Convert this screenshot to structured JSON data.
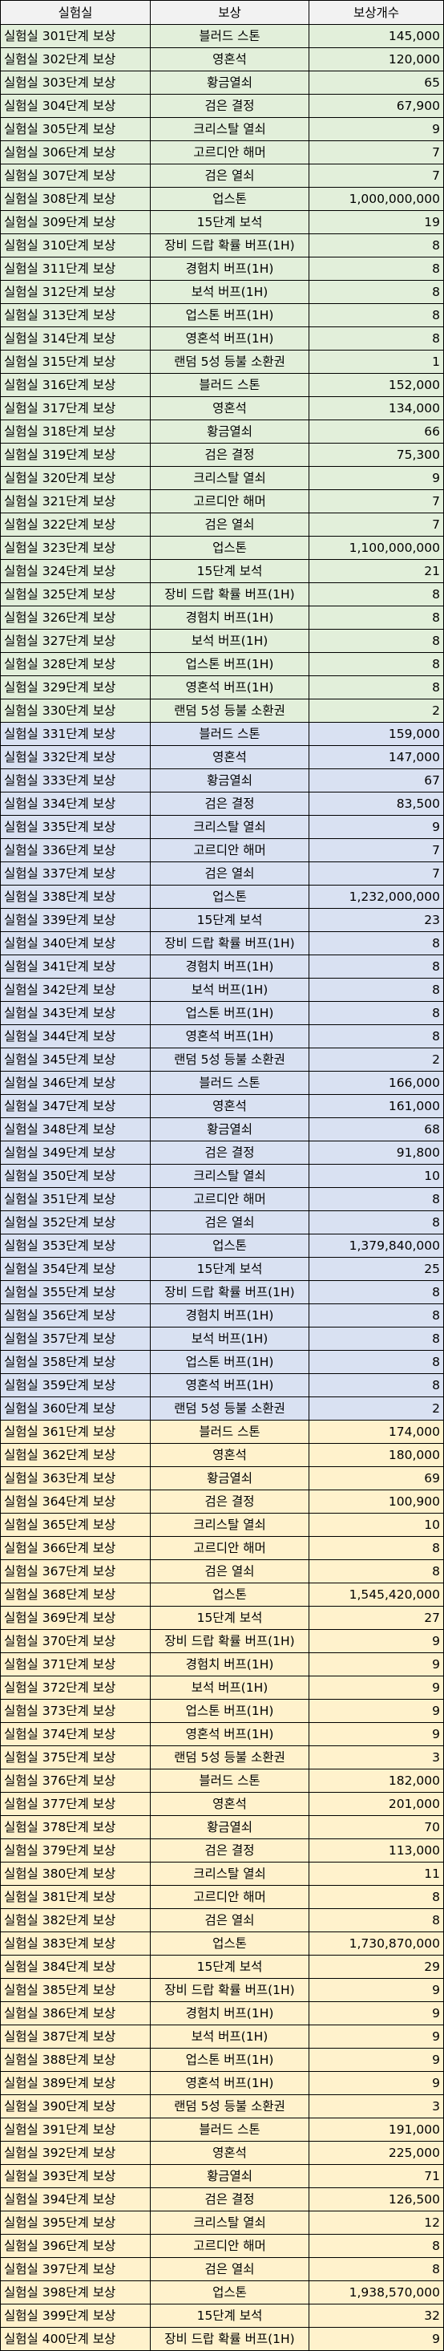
{
  "headers": {
    "stage": "실험실",
    "reward": "보상",
    "count": "보상개수"
  },
  "colors": {
    "group_1": "#e2efda",
    "group_2": "#d9e1f2",
    "group_3": "#fff2cc",
    "header": "#f2f2f2"
  },
  "rows": [
    {
      "stage": "실험실 301단계 보상",
      "reward": "블러드 스톤",
      "count": "145,000",
      "group": 0
    },
    {
      "stage": "실험실 302단계 보상",
      "reward": "영혼석",
      "count": "120,000",
      "group": 0
    },
    {
      "stage": "실험실 303단계 보상",
      "reward": "황금열쇠",
      "count": "65",
      "group": 0
    },
    {
      "stage": "실험실 304단계 보상",
      "reward": "검은 결정",
      "count": "67,900",
      "group": 0
    },
    {
      "stage": "실험실 305단계 보상",
      "reward": "크리스탈 열쇠",
      "count": "9",
      "group": 0
    },
    {
      "stage": "실험실 306단계 보상",
      "reward": "고르디안 해머",
      "count": "7",
      "group": 0
    },
    {
      "stage": "실험실 307단계 보상",
      "reward": "검은 열쇠",
      "count": "7",
      "group": 0
    },
    {
      "stage": "실험실 308단계 보상",
      "reward": "업스톤",
      "count": "1,000,000,000",
      "group": 0
    },
    {
      "stage": "실험실 309단계 보상",
      "reward": "15단계 보석",
      "count": "19",
      "group": 0
    },
    {
      "stage": "실험실 310단계 보상",
      "reward": "장비 드랍 확률 버프(1H)",
      "count": "8",
      "group": 0
    },
    {
      "stage": "실험실 311단계 보상",
      "reward": "경험치 버프(1H)",
      "count": "8",
      "group": 0
    },
    {
      "stage": "실험실 312단계 보상",
      "reward": "보석 버프(1H)",
      "count": "8",
      "group": 0
    },
    {
      "stage": "실험실 313단계 보상",
      "reward": "업스톤 버프(1H)",
      "count": "8",
      "group": 0
    },
    {
      "stage": "실험실 314단계 보상",
      "reward": "영혼석 버프(1H)",
      "count": "8",
      "group": 0
    },
    {
      "stage": "실험실 315단계 보상",
      "reward": "랜덤 5성 등불 소환권",
      "count": "1",
      "group": 0
    },
    {
      "stage": "실험실 316단계 보상",
      "reward": "블러드 스톤",
      "count": "152,000",
      "group": 0
    },
    {
      "stage": "실험실 317단계 보상",
      "reward": "영혼석",
      "count": "134,000",
      "group": 0
    },
    {
      "stage": "실험실 318단계 보상",
      "reward": "황금열쇠",
      "count": "66",
      "group": 0
    },
    {
      "stage": "실험실 319단계 보상",
      "reward": "검은 결정",
      "count": "75,300",
      "group": 0
    },
    {
      "stage": "실험실 320단계 보상",
      "reward": "크리스탈 열쇠",
      "count": "9",
      "group": 0
    },
    {
      "stage": "실험실 321단계 보상",
      "reward": "고르디안 해머",
      "count": "7",
      "group": 0
    },
    {
      "stage": "실험실 322단계 보상",
      "reward": "검은 열쇠",
      "count": "7",
      "group": 0
    },
    {
      "stage": "실험실 323단계 보상",
      "reward": "업스톤",
      "count": "1,100,000,000",
      "group": 0
    },
    {
      "stage": "실험실 324단계 보상",
      "reward": "15단계 보석",
      "count": "21",
      "group": 0
    },
    {
      "stage": "실험실 325단계 보상",
      "reward": "장비 드랍 확률 버프(1H)",
      "count": "8",
      "group": 0
    },
    {
      "stage": "실험실 326단계 보상",
      "reward": "경험치 버프(1H)",
      "count": "8",
      "group": 0
    },
    {
      "stage": "실험실 327단계 보상",
      "reward": "보석 버프(1H)",
      "count": "8",
      "group": 0
    },
    {
      "stage": "실험실 328단계 보상",
      "reward": "업스톤 버프(1H)",
      "count": "8",
      "group": 0
    },
    {
      "stage": "실험실 329단계 보상",
      "reward": "영혼석 버프(1H)",
      "count": "8",
      "group": 0
    },
    {
      "stage": "실험실 330단계 보상",
      "reward": "랜덤 5성 등불 소환권",
      "count": "2",
      "group": 0
    },
    {
      "stage": "실험실 331단계 보상",
      "reward": "블러드 스톤",
      "count": "159,000",
      "group": 1
    },
    {
      "stage": "실험실 332단계 보상",
      "reward": "영혼석",
      "count": "147,000",
      "group": 1
    },
    {
      "stage": "실험실 333단계 보상",
      "reward": "황금열쇠",
      "count": "67",
      "group": 1
    },
    {
      "stage": "실험실 334단계 보상",
      "reward": "검은 결정",
      "count": "83,500",
      "group": 1
    },
    {
      "stage": "실험실 335단계 보상",
      "reward": "크리스탈 열쇠",
      "count": "9",
      "group": 1
    },
    {
      "stage": "실험실 336단계 보상",
      "reward": "고르디안 해머",
      "count": "7",
      "group": 1
    },
    {
      "stage": "실험실 337단계 보상",
      "reward": "검은 열쇠",
      "count": "7",
      "group": 1
    },
    {
      "stage": "실험실 338단계 보상",
      "reward": "업스톤",
      "count": "1,232,000,000",
      "group": 1
    },
    {
      "stage": "실험실 339단계 보상",
      "reward": "15단계 보석",
      "count": "23",
      "group": 1
    },
    {
      "stage": "실험실 340단계 보상",
      "reward": "장비 드랍 확률 버프(1H)",
      "count": "8",
      "group": 1
    },
    {
      "stage": "실험실 341단계 보상",
      "reward": "경험치 버프(1H)",
      "count": "8",
      "group": 1
    },
    {
      "stage": "실험실 342단계 보상",
      "reward": "보석 버프(1H)",
      "count": "8",
      "group": 1
    },
    {
      "stage": "실험실 343단계 보상",
      "reward": "업스톤 버프(1H)",
      "count": "8",
      "group": 1
    },
    {
      "stage": "실험실 344단계 보상",
      "reward": "영혼석 버프(1H)",
      "count": "8",
      "group": 1
    },
    {
      "stage": "실험실 345단계 보상",
      "reward": "랜덤 5성 등불 소환권",
      "count": "2",
      "group": 1
    },
    {
      "stage": "실험실 346단계 보상",
      "reward": "블러드 스톤",
      "count": "166,000",
      "group": 1
    },
    {
      "stage": "실험실 347단계 보상",
      "reward": "영혼석",
      "count": "161,000",
      "group": 1
    },
    {
      "stage": "실험실 348단계 보상",
      "reward": "황금열쇠",
      "count": "68",
      "group": 1
    },
    {
      "stage": "실험실 349단계 보상",
      "reward": "검은 결정",
      "count": "91,800",
      "group": 1
    },
    {
      "stage": "실험실 350단계 보상",
      "reward": "크리스탈 열쇠",
      "count": "10",
      "group": 1
    },
    {
      "stage": "실험실 351단계 보상",
      "reward": "고르디안 해머",
      "count": "8",
      "group": 1
    },
    {
      "stage": "실험실 352단계 보상",
      "reward": "검은 열쇠",
      "count": "8",
      "group": 1
    },
    {
      "stage": "실험실 353단계 보상",
      "reward": "업스톤",
      "count": "1,379,840,000",
      "group": 1
    },
    {
      "stage": "실험실 354단계 보상",
      "reward": "15단계 보석",
      "count": "25",
      "group": 1
    },
    {
      "stage": "실험실 355단계 보상",
      "reward": "장비 드랍 확률 버프(1H)",
      "count": "8",
      "group": 1
    },
    {
      "stage": "실험실 356단계 보상",
      "reward": "경험치 버프(1H)",
      "count": "8",
      "group": 1
    },
    {
      "stage": "실험실 357단계 보상",
      "reward": "보석 버프(1H)",
      "count": "8",
      "group": 1
    },
    {
      "stage": "실험실 358단계 보상",
      "reward": "업스톤 버프(1H)",
      "count": "8",
      "group": 1
    },
    {
      "stage": "실험실 359단계 보상",
      "reward": "영혼석 버프(1H)",
      "count": "8",
      "group": 1
    },
    {
      "stage": "실험실 360단계 보상",
      "reward": "랜덤 5성 등불 소환권",
      "count": "2",
      "group": 1
    },
    {
      "stage": "실험실 361단계 보상",
      "reward": "블러드 스톤",
      "count": "174,000",
      "group": 2
    },
    {
      "stage": "실험실 362단계 보상",
      "reward": "영혼석",
      "count": "180,000",
      "group": 2
    },
    {
      "stage": "실험실 363단계 보상",
      "reward": "황금열쇠",
      "count": "69",
      "group": 2
    },
    {
      "stage": "실험실 364단계 보상",
      "reward": "검은 결정",
      "count": "100,900",
      "group": 2
    },
    {
      "stage": "실험실 365단계 보상",
      "reward": "크리스탈 열쇠",
      "count": "10",
      "group": 2
    },
    {
      "stage": "실험실 366단계 보상",
      "reward": "고르디안 해머",
      "count": "8",
      "group": 2
    },
    {
      "stage": "실험실 367단계 보상",
      "reward": "검은 열쇠",
      "count": "8",
      "group": 2
    },
    {
      "stage": "실험실 368단계 보상",
      "reward": "업스톤",
      "count": "1,545,420,000",
      "group": 2
    },
    {
      "stage": "실험실 369단계 보상",
      "reward": "15단계 보석",
      "count": "27",
      "group": 2
    },
    {
      "stage": "실험실 370단계 보상",
      "reward": "장비 드랍 확률 버프(1H)",
      "count": "9",
      "group": 2
    },
    {
      "stage": "실험실 371단계 보상",
      "reward": "경험치 버프(1H)",
      "count": "9",
      "group": 2
    },
    {
      "stage": "실험실 372단계 보상",
      "reward": "보석 버프(1H)",
      "count": "9",
      "group": 2
    },
    {
      "stage": "실험실 373단계 보상",
      "reward": "업스톤 버프(1H)",
      "count": "9",
      "group": 2
    },
    {
      "stage": "실험실 374단계 보상",
      "reward": "영혼석 버프(1H)",
      "count": "9",
      "group": 2
    },
    {
      "stage": "실험실 375단계 보상",
      "reward": "랜덤 5성 등불 소환권",
      "count": "3",
      "group": 2
    },
    {
      "stage": "실험실 376단계 보상",
      "reward": "블러드 스톤",
      "count": "182,000",
      "group": 2
    },
    {
      "stage": "실험실 377단계 보상",
      "reward": "영혼석",
      "count": "201,000",
      "group": 2
    },
    {
      "stage": "실험실 378단계 보상",
      "reward": "황금열쇠",
      "count": "70",
      "group": 2
    },
    {
      "stage": "실험실 379단계 보상",
      "reward": "검은 결정",
      "count": "113,000",
      "group": 2
    },
    {
      "stage": "실험실 380단계 보상",
      "reward": "크리스탈 열쇠",
      "count": "11",
      "group": 2
    },
    {
      "stage": "실험실 381단계 보상",
      "reward": "고르디안 해머",
      "count": "8",
      "group": 2
    },
    {
      "stage": "실험실 382단계 보상",
      "reward": "검은 열쇠",
      "count": "8",
      "group": 2
    },
    {
      "stage": "실험실 383단계 보상",
      "reward": "업스톤",
      "count": "1,730,870,000",
      "group": 2
    },
    {
      "stage": "실험실 384단계 보상",
      "reward": "15단계 보석",
      "count": "29",
      "group": 2
    },
    {
      "stage": "실험실 385단계 보상",
      "reward": "장비 드랍 확률 버프(1H)",
      "count": "9",
      "group": 2
    },
    {
      "stage": "실험실 386단계 보상",
      "reward": "경험치 버프(1H)",
      "count": "9",
      "group": 2
    },
    {
      "stage": "실험실 387단계 보상",
      "reward": "보석 버프(1H)",
      "count": "9",
      "group": 2
    },
    {
      "stage": "실험실 388단계 보상",
      "reward": "업스톤 버프(1H)",
      "count": "9",
      "group": 2
    },
    {
      "stage": "실험실 389단계 보상",
      "reward": "영혼석 버프(1H)",
      "count": "9",
      "group": 2
    },
    {
      "stage": "실험실 390단계 보상",
      "reward": "랜덤 5성 등불 소환권",
      "count": "3",
      "group": 2
    },
    {
      "stage": "실험실 391단계 보상",
      "reward": "블러드 스톤",
      "count": "191,000",
      "group": 2
    },
    {
      "stage": "실험실 392단계 보상",
      "reward": "영혼석",
      "count": "225,000",
      "group": 2
    },
    {
      "stage": "실험실 393단계 보상",
      "reward": "황금열쇠",
      "count": "71",
      "group": 2
    },
    {
      "stage": "실험실 394단계 보상",
      "reward": "검은 결정",
      "count": "126,500",
      "group": 2
    },
    {
      "stage": "실험실 395단계 보상",
      "reward": "크리스탈 열쇠",
      "count": "12",
      "group": 2
    },
    {
      "stage": "실험실 396단계 보상",
      "reward": "고르디안 해머",
      "count": "8",
      "group": 2
    },
    {
      "stage": "실험실 397단계 보상",
      "reward": "검은 열쇠",
      "count": "8",
      "group": 2
    },
    {
      "stage": "실험실 398단계 보상",
      "reward": "업스톤",
      "count": "1,938,570,000",
      "group": 2
    },
    {
      "stage": "실험실 399단계 보상",
      "reward": "15단계 보석",
      "count": "32",
      "group": 2
    },
    {
      "stage": "실험실 400단계 보상",
      "reward": "장비 드랍 확률 버프(1H)",
      "count": "9",
      "group": 2
    }
  ]
}
